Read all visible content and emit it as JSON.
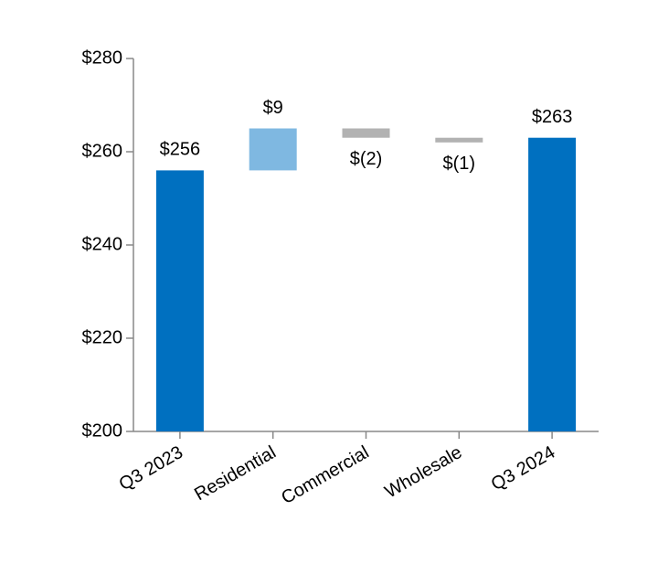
{
  "chart_data": {
    "type": "waterfall",
    "categories": [
      "Q3 2023",
      "Residential",
      "Commercial",
      "Wholesale",
      "Q3 2024"
    ],
    "values": [
      256,
      9,
      -2,
      -1,
      263
    ],
    "value_labels": [
      "$256",
      "$9",
      "$(2)",
      "$(1)",
      "$263"
    ],
    "measures": [
      "absolute",
      "relative",
      "relative",
      "relative",
      "total"
    ],
    "colors": {
      "total": "#0070c0",
      "increase": "#7fb8e1",
      "decrease": "#b2b2b2"
    },
    "ylim": [
      200,
      280
    ],
    "yticks": [
      {
        "value": 200,
        "label": "$200"
      },
      {
        "value": 220,
        "label": "$220"
      },
      {
        "value": 240,
        "label": "$240"
      },
      {
        "value": 260,
        "label": "$260"
      },
      {
        "value": 280,
        "label": "$280"
      }
    ]
  }
}
